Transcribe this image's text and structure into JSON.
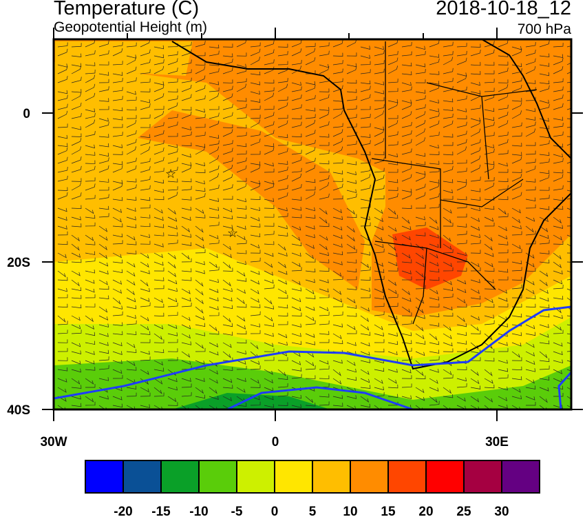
{
  "header": {
    "title": "Temperature (C)",
    "subtitle": "Geopotential Height (m)",
    "datetime": "2018-10-18_12",
    "level": "700 hPa"
  },
  "axes": {
    "lon_labels": [
      "30W",
      "0",
      "30E"
    ],
    "lat_labels": [
      "0",
      "20S",
      "40S"
    ],
    "lon_range": [
      -30,
      40
    ],
    "lat_range": [
      -40,
      10
    ]
  },
  "colorbar": {
    "labels": [
      "-20",
      "-15",
      "-10",
      "-5",
      "0",
      "5",
      "10",
      "15",
      "20",
      "25",
      "30"
    ],
    "colors": [
      "#0000ff",
      "#0a5096",
      "#0aa028",
      "#5acd0a",
      "#cdf000",
      "#ffe600",
      "#ffbe00",
      "#ff8c00",
      "#ff4600",
      "#ff0000",
      "#a50041",
      "#640082"
    ]
  },
  "chart_data": {
    "type": "heatmap",
    "title": "Temperature (C)",
    "subtitle": "Geopotential Height (m)",
    "variable_units": "C",
    "levels": [
      -20,
      -15,
      -10,
      -5,
      0,
      5,
      10,
      15,
      20,
      25,
      30
    ],
    "xlabel": "",
    "ylabel": "",
    "xlim": [
      -30,
      40
    ],
    "ylim": [
      -40,
      10
    ],
    "xticks": [
      "30W",
      "0",
      "30E"
    ],
    "yticks": [
      "0",
      "20S",
      "40S"
    ]
  }
}
